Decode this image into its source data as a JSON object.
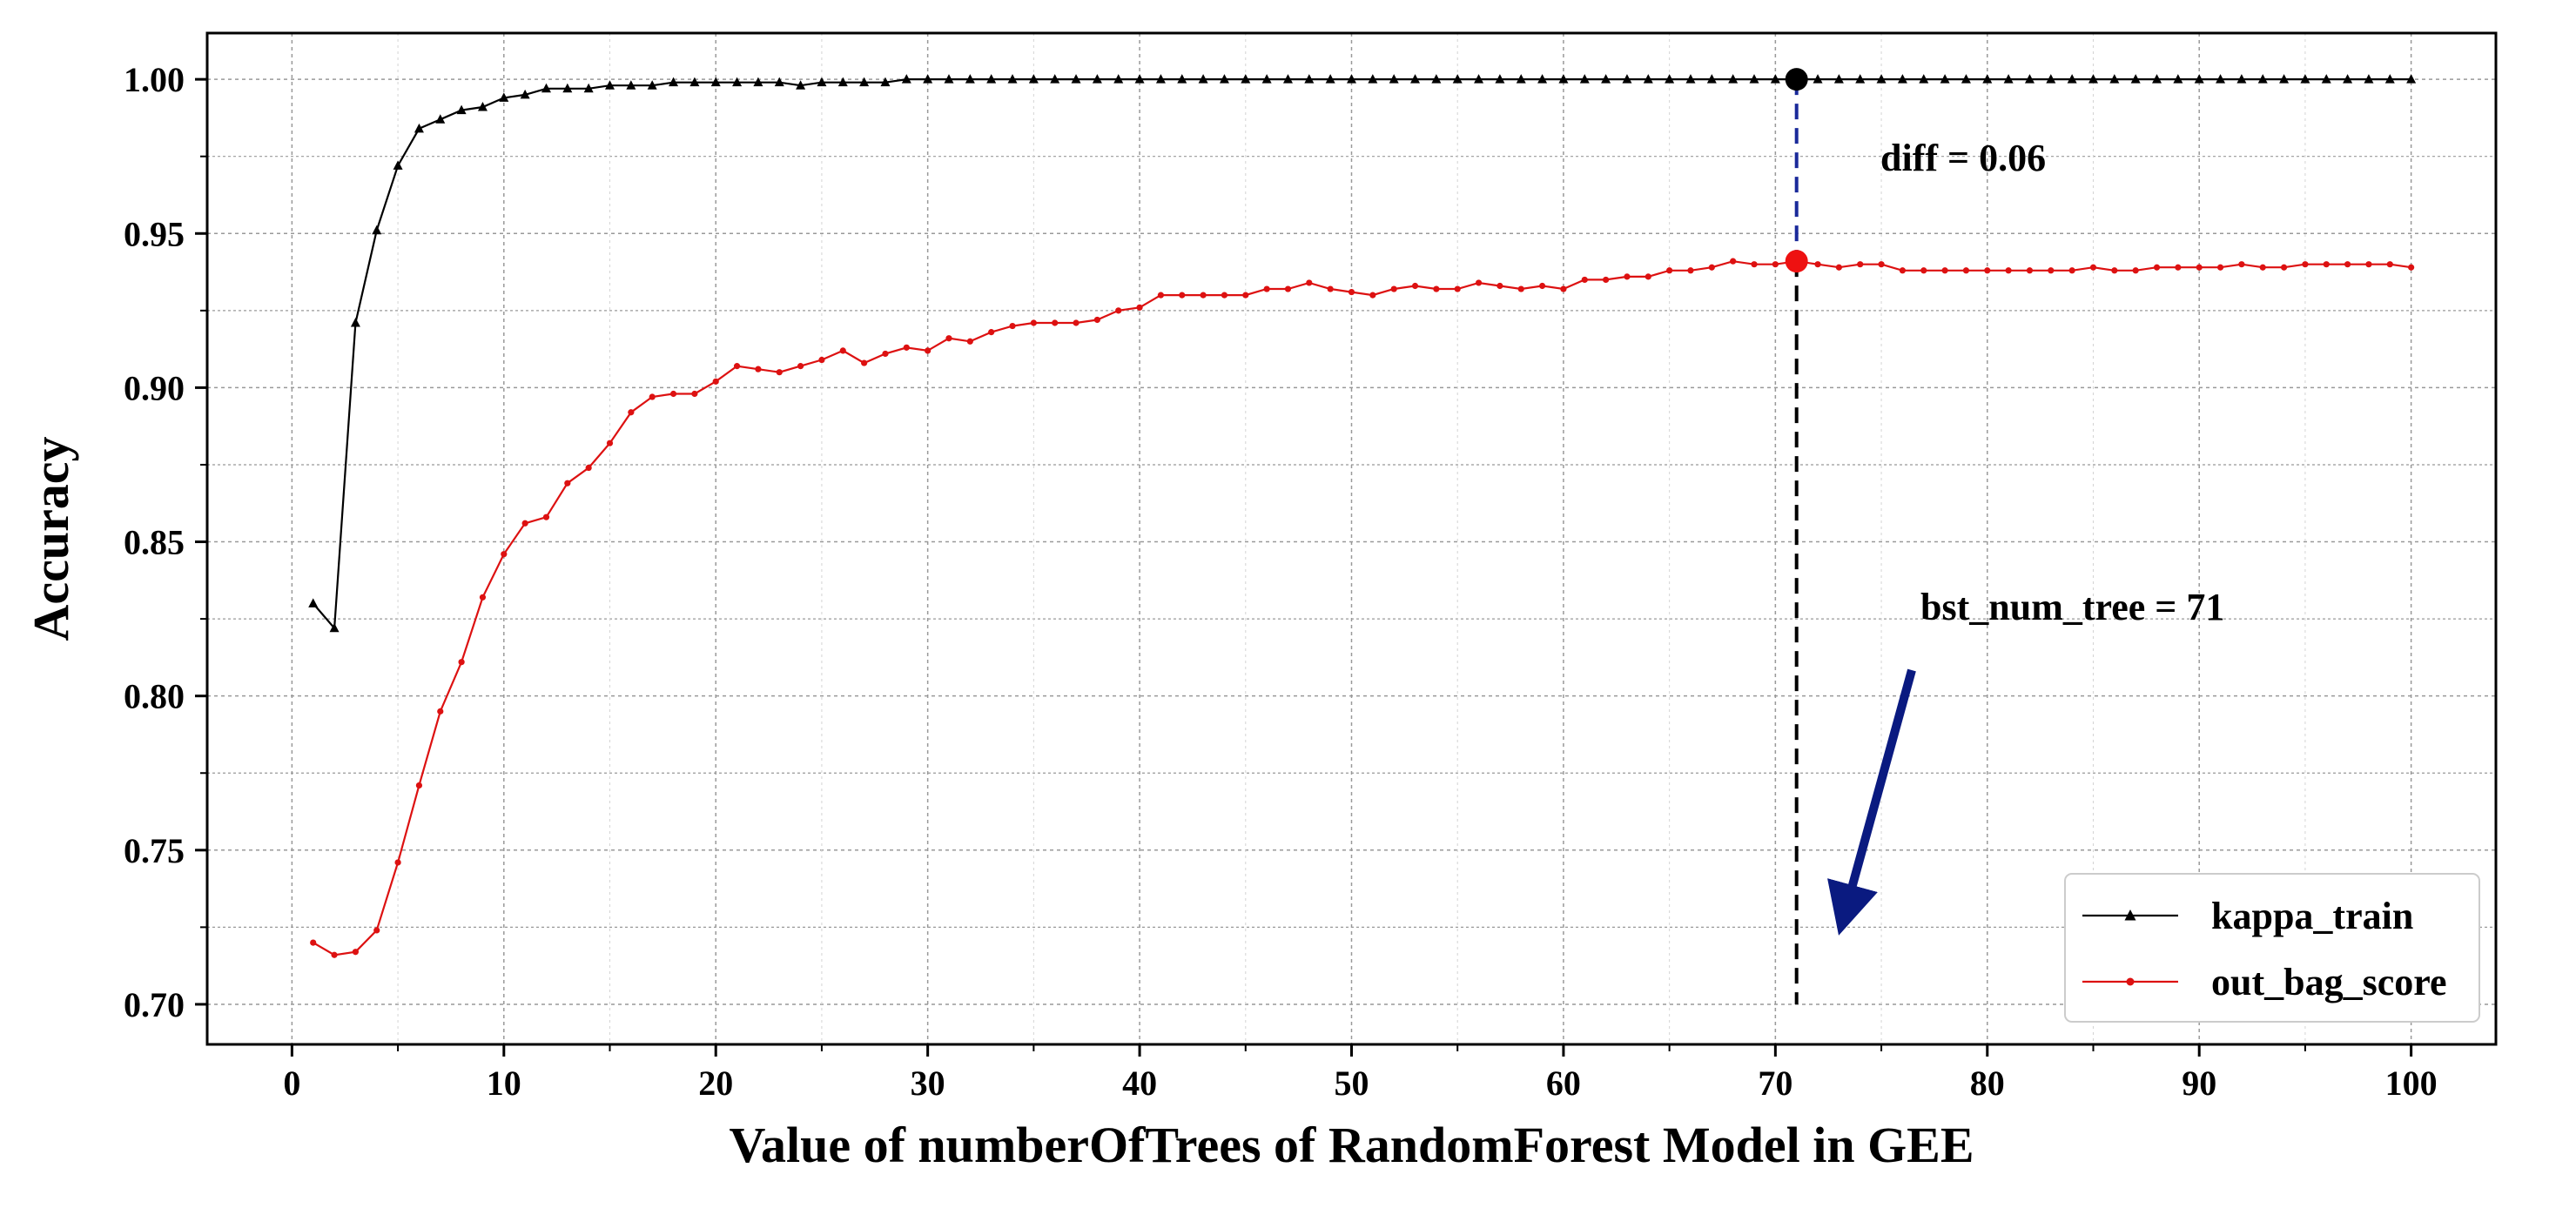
{
  "chart_data": {
    "type": "line",
    "xlabel": "Value of numberOfTrees of RandomForest Model in GEE",
    "ylabel": "Accuracy",
    "xlim": [
      -4,
      104
    ],
    "ylim": [
      0.687,
      1.015
    ],
    "xticks": [
      0,
      10,
      20,
      30,
      40,
      50,
      60,
      70,
      80,
      90,
      100
    ],
    "yticks": [
      0.7,
      0.75,
      0.8,
      0.85,
      0.9,
      0.95,
      1.0
    ],
    "yticks_minor": [
      0.725,
      0.775,
      0.825,
      0.875,
      0.925,
      0.975
    ],
    "xtick_labels": [
      "0",
      "10",
      "20",
      "30",
      "40",
      "50",
      "60",
      "70",
      "80",
      "90",
      "100"
    ],
    "ytick_labels": [
      "0.70",
      "0.75",
      "0.80",
      "0.85",
      "0.90",
      "0.95",
      "1.00"
    ],
    "grid": true,
    "legend": {
      "position": "lower-right",
      "entries": [
        "kappa_train",
        "out_bag_score"
      ]
    },
    "series": [
      {
        "name": "kappa_train",
        "color": "#000000",
        "marker": "triangle",
        "x": [
          1,
          2,
          3,
          4,
          5,
          6,
          7,
          8,
          9,
          10,
          11,
          12,
          13,
          14,
          15,
          16,
          17,
          18,
          19,
          20,
          21,
          22,
          23,
          24,
          25,
          26,
          27,
          28,
          29,
          30,
          31,
          32,
          33,
          34,
          35,
          36,
          37,
          38,
          39,
          40,
          41,
          42,
          43,
          44,
          45,
          46,
          47,
          48,
          49,
          50,
          51,
          52,
          53,
          54,
          55,
          56,
          57,
          58,
          59,
          60,
          61,
          62,
          63,
          64,
          65,
          66,
          67,
          68,
          69,
          70,
          71,
          72,
          73,
          74,
          75,
          76,
          77,
          78,
          79,
          80,
          81,
          82,
          83,
          84,
          85,
          86,
          87,
          88,
          89,
          90,
          91,
          92,
          93,
          94,
          95,
          96,
          97,
          98,
          99,
          100
        ],
        "values": [
          0.83,
          0.822,
          0.921,
          0.951,
          0.972,
          0.984,
          0.987,
          0.99,
          0.991,
          0.994,
          0.995,
          0.997,
          0.997,
          0.997,
          0.998,
          0.998,
          0.998,
          0.999,
          0.999,
          0.999,
          0.999,
          0.999,
          0.999,
          0.998,
          0.999,
          0.999,
          0.999,
          0.999,
          1.0,
          1.0,
          1.0,
          1.0,
          1.0,
          1.0,
          1.0,
          1.0,
          1.0,
          1.0,
          1.0,
          1.0,
          1.0,
          1.0,
          1.0,
          1.0,
          1.0,
          1.0,
          1.0,
          1.0,
          1.0,
          1.0,
          1.0,
          1.0,
          1.0,
          1.0,
          1.0,
          1.0,
          1.0,
          1.0,
          1.0,
          1.0,
          1.0,
          1.0,
          1.0,
          1.0,
          1.0,
          1.0,
          1.0,
          1.0,
          1.0,
          1.0,
          1.0,
          1.0,
          1.0,
          1.0,
          1.0,
          1.0,
          1.0,
          1.0,
          1.0,
          1.0,
          1.0,
          1.0,
          1.0,
          1.0,
          1.0,
          1.0,
          1.0,
          1.0,
          1.0,
          1.0,
          1.0,
          1.0,
          1.0,
          1.0,
          1.0,
          1.0,
          1.0,
          1.0,
          1.0,
          1.0
        ]
      },
      {
        "name": "out_bag_score",
        "color": "#dd1111",
        "marker": "dot",
        "x": [
          1,
          2,
          3,
          4,
          5,
          6,
          7,
          8,
          9,
          10,
          11,
          12,
          13,
          14,
          15,
          16,
          17,
          18,
          19,
          20,
          21,
          22,
          23,
          24,
          25,
          26,
          27,
          28,
          29,
          30,
          31,
          32,
          33,
          34,
          35,
          36,
          37,
          38,
          39,
          40,
          41,
          42,
          43,
          44,
          45,
          46,
          47,
          48,
          49,
          50,
          51,
          52,
          53,
          54,
          55,
          56,
          57,
          58,
          59,
          60,
          61,
          62,
          63,
          64,
          65,
          66,
          67,
          68,
          69,
          70,
          71,
          72,
          73,
          74,
          75,
          76,
          77,
          78,
          79,
          80,
          81,
          82,
          83,
          84,
          85,
          86,
          87,
          88,
          89,
          90,
          91,
          92,
          93,
          94,
          95,
          96,
          97,
          98,
          99,
          100
        ],
        "values": [
          0.72,
          0.716,
          0.717,
          0.724,
          0.746,
          0.771,
          0.795,
          0.811,
          0.832,
          0.846,
          0.856,
          0.858,
          0.869,
          0.874,
          0.882,
          0.892,
          0.897,
          0.898,
          0.898,
          0.902,
          0.907,
          0.906,
          0.905,
          0.907,
          0.909,
          0.912,
          0.908,
          0.911,
          0.913,
          0.912,
          0.916,
          0.915,
          0.918,
          0.92,
          0.921,
          0.921,
          0.921,
          0.922,
          0.925,
          0.926,
          0.93,
          0.93,
          0.93,
          0.93,
          0.93,
          0.932,
          0.932,
          0.934,
          0.932,
          0.931,
          0.93,
          0.932,
          0.933,
          0.932,
          0.932,
          0.934,
          0.933,
          0.932,
          0.933,
          0.932,
          0.935,
          0.935,
          0.936,
          0.936,
          0.938,
          0.938,
          0.939,
          0.941,
          0.94,
          0.94,
          0.941,
          0.94,
          0.939,
          0.94,
          0.94,
          0.938,
          0.938,
          0.938,
          0.938,
          0.938,
          0.938,
          0.938,
          0.938,
          0.938,
          0.939,
          0.938,
          0.938,
          0.939,
          0.939,
          0.939,
          0.939,
          0.94,
          0.939,
          0.939,
          0.94,
          0.94,
          0.94,
          0.94,
          0.94,
          0.939
        ]
      }
    ],
    "highlight": {
      "best_x": 71,
      "kappa_value": 1.0,
      "oob_value": 0.941,
      "diff_label": "diff = 0.06",
      "best_label": "bst_num_tree = 71"
    },
    "colors": {
      "axis": "#000000",
      "grid": "#999999",
      "kappa": "#000000",
      "oob": "#dd1111",
      "diff_line": "#1a2a9a",
      "arrow": "#0a1a80"
    }
  }
}
